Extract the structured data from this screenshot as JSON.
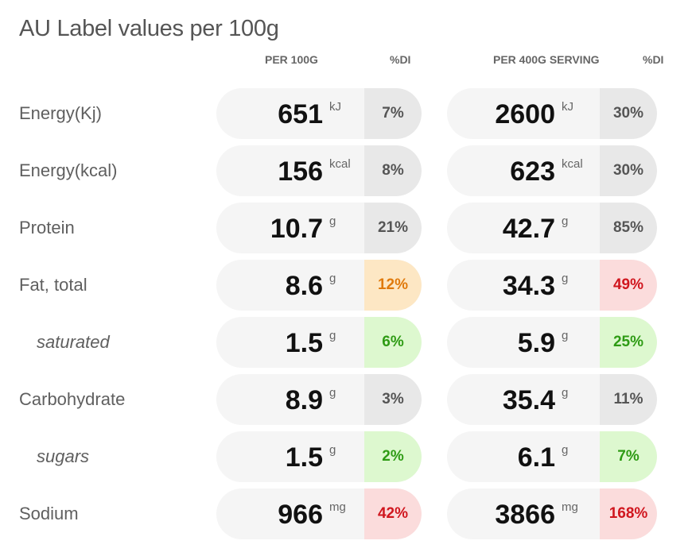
{
  "title": "AU Label values per 100g",
  "columns": {
    "per100": "PER 100G",
    "di1": "%DI",
    "serving": "PER 400G SERVING",
    "di2": "%DI"
  },
  "colors": {
    "neutral": "#e8e8e8",
    "orange": "#fde7c4",
    "green": "#ddf8cf",
    "red": "#fbdcdc"
  },
  "rows": [
    {
      "label": "Energy(Kj)",
      "sub": false,
      "v100": "651",
      "u100": "kJ",
      "di100": "7%",
      "c100": "neutral",
      "vs": "2600",
      "us": "kJ",
      "dis": "30%",
      "cs": "neutral"
    },
    {
      "label": "Energy(kcal)",
      "sub": false,
      "v100": "156",
      "u100": "kcal",
      "di100": "8%",
      "c100": "neutral",
      "vs": "623",
      "us": "kcal",
      "dis": "30%",
      "cs": "neutral"
    },
    {
      "label": "Protein",
      "sub": false,
      "v100": "10.7",
      "u100": "g",
      "di100": "21%",
      "c100": "neutral",
      "vs": "42.7",
      "us": "g",
      "dis": "85%",
      "cs": "neutral"
    },
    {
      "label": "Fat, total",
      "sub": false,
      "v100": "8.6",
      "u100": "g",
      "di100": "12%",
      "c100": "orange",
      "vs": "34.3",
      "us": "g",
      "dis": "49%",
      "cs": "red"
    },
    {
      "label": "saturated",
      "sub": true,
      "v100": "1.5",
      "u100": "g",
      "di100": "6%",
      "c100": "green",
      "vs": "5.9",
      "us": "g",
      "dis": "25%",
      "cs": "green"
    },
    {
      "label": "Carbohydrate",
      "sub": false,
      "v100": "8.9",
      "u100": "g",
      "di100": "3%",
      "c100": "neutral",
      "vs": "35.4",
      "us": "g",
      "dis": "11%",
      "cs": "neutral"
    },
    {
      "label": "sugars",
      "sub": true,
      "v100": "1.5",
      "u100": "g",
      "di100": "2%",
      "c100": "green",
      "vs": "6.1",
      "us": "g",
      "dis": "7%",
      "cs": "green"
    },
    {
      "label": "Sodium",
      "sub": false,
      "v100": "966",
      "u100": "mg",
      "di100": "42%",
      "c100": "red",
      "vs": "3866",
      "us": "mg",
      "dis": "168%",
      "cs": "red"
    }
  ]
}
